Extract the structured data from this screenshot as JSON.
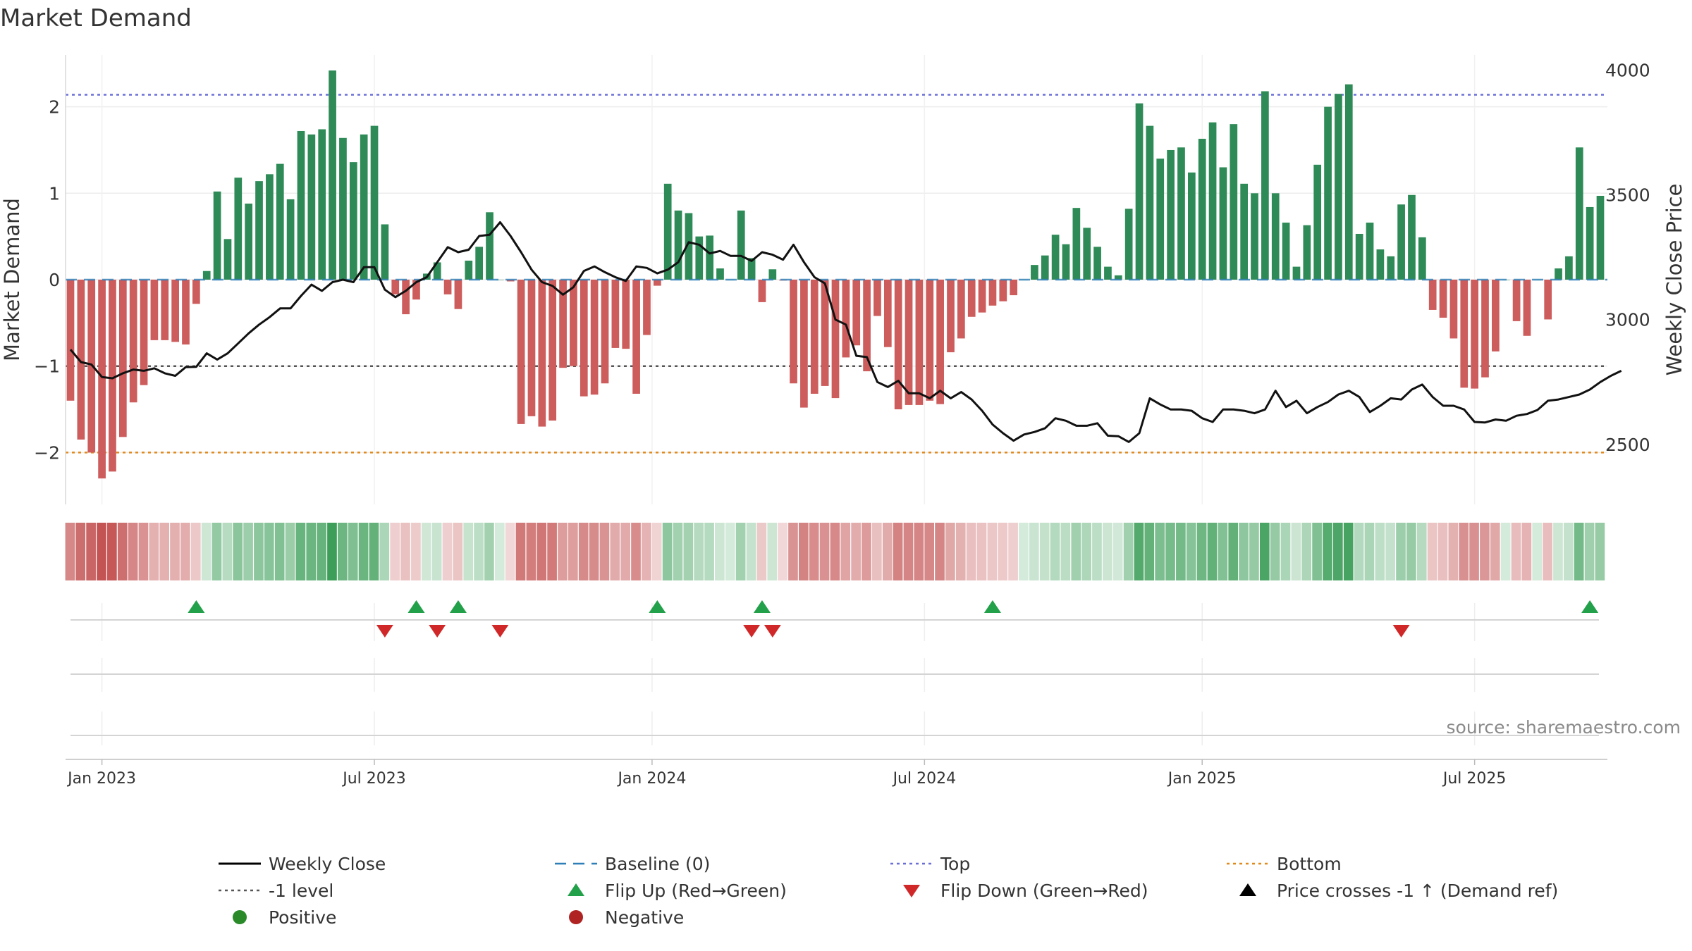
{
  "chart_data": {
    "type": "bar",
    "title": "Market Demand",
    "ylabel_left": "Market Demand",
    "ylabel_right": "Weekly Close Price",
    "source": "source: sharemaestro.com",
    "ylim_left": [
      -2.6,
      2.6
    ],
    "ylim_right": [
      2260,
      4060
    ],
    "yticks_left": [
      {
        "v": 2,
        "label": "2"
      },
      {
        "v": 1,
        "label": "1"
      },
      {
        "v": 0,
        "label": "0"
      },
      {
        "v": -1,
        "label": "−1"
      },
      {
        "v": -2,
        "label": "−2"
      }
    ],
    "yticks_right": [
      {
        "v": 4000,
        "label": "4000"
      },
      {
        "v": 3500,
        "label": "3500"
      },
      {
        "v": 3000,
        "label": "3000"
      },
      {
        "v": 2500,
        "label": "2500"
      }
    ],
    "x_ticks": [
      {
        "week": 3,
        "label": "Jan 2023"
      },
      {
        "week": 29,
        "label": "Jul 2023"
      },
      {
        "week": 55.5,
        "label": "Jan 2024"
      },
      {
        "week": 81.5,
        "label": "Jul 2024"
      },
      {
        "week": 108,
        "label": "Jan 2025"
      },
      {
        "week": 134,
        "label": "Jul 2025"
      }
    ],
    "reference_lines": {
      "top": 2.14,
      "minus_one": -1.0,
      "bottom": -2.0,
      "baseline": 0
    },
    "demand": [
      -1.4,
      -1.85,
      -2.0,
      -2.3,
      -2.22,
      -1.82,
      -1.42,
      -1.22,
      -0.7,
      -0.7,
      -0.72,
      -0.75,
      -0.28,
      0.1,
      1.02,
      0.47,
      1.18,
      0.88,
      1.14,
      1.22,
      1.34,
      0.93,
      1.72,
      1.68,
      1.74,
      2.42,
      1.64,
      1.36,
      1.68,
      1.78,
      0.64,
      -0.17,
      -0.4,
      -0.23,
      0.07,
      0.2,
      -0.17,
      -0.34,
      0.22,
      0.38,
      0.78,
      0.0,
      -0.02,
      -1.67,
      -1.58,
      -1.7,
      -1.63,
      -1.02,
      -1.0,
      -1.35,
      -1.33,
      -1.2,
      -0.79,
      -0.8,
      -1.32,
      -0.64,
      -0.07,
      1.11,
      0.8,
      0.77,
      0.5,
      0.51,
      0.13,
      0.0,
      0.8,
      0.25,
      -0.26,
      0.12,
      -0.01,
      -1.2,
      -1.48,
      -1.32,
      -1.23,
      -1.37,
      -0.9,
      -0.76,
      -1.06,
      -0.42,
      -0.78,
      -1.5,
      -1.45,
      -1.45,
      -1.4,
      -1.44,
      -0.84,
      -0.68,
      -0.43,
      -0.38,
      -0.3,
      -0.25,
      -0.18,
      0.0,
      0.17,
      0.28,
      0.52,
      0.41,
      0.83,
      0.6,
      0.38,
      0.15,
      0.05,
      0.82,
      2.04,
      1.78,
      1.4,
      1.5,
      1.53,
      1.24,
      1.63,
      1.82,
      1.3,
      1.8,
      1.11,
      1.0,
      2.18,
      1.0,
      0.66,
      0.15,
      0.63,
      1.33,
      2.0,
      2.15,
      2.26,
      0.53,
      0.66,
      0.35,
      0.27,
      0.87,
      0.98,
      0.49,
      -0.35,
      -0.44,
      -0.68,
      -1.25,
      -1.26,
      -1.13,
      -0.83,
      0.0,
      -0.48,
      -0.65,
      0.0,
      -0.46,
      0.13,
      0.27,
      1.53,
      0.84,
      0.97
    ],
    "price": [
      2880,
      2830,
      2820,
      2770,
      2765,
      2785,
      2800,
      2795,
      2805,
      2785,
      2775,
      2810,
      2811,
      2865,
      2840,
      2865,
      2905,
      2945,
      2980,
      3010,
      3045,
      3045,
      3095,
      3140,
      3115,
      3150,
      3160,
      3150,
      3210,
      3210,
      3120,
      3090,
      3115,
      3150,
      3170,
      3230,
      3290,
      3270,
      3280,
      3335,
      3340,
      3390,
      3335,
      3270,
      3200,
      3150,
      3135,
      3100,
      3130,
      3195,
      3213,
      3190,
      3170,
      3155,
      3213,
      3207,
      3185,
      3200,
      3230,
      3310,
      3300,
      3265,
      3275,
      3255,
      3255,
      3235,
      3270,
      3260,
      3240,
      3300,
      3230,
      3170,
      3145,
      3000,
      2980,
      2855,
      2850,
      2750,
      2730,
      2755,
      2705,
      2705,
      2685,
      2715,
      2685,
      2710,
      2680,
      2635,
      2580,
      2545,
      2515,
      2540,
      2550,
      2565,
      2605,
      2595,
      2575,
      2575,
      2585,
      2535,
      2533,
      2510,
      2545,
      2685,
      2660,
      2640,
      2640,
      2635,
      2605,
      2590,
      2640,
      2640,
      2635,
      2625,
      2640,
      2715,
      2650,
      2675,
      2625,
      2650,
      2670,
      2700,
      2715,
      2690,
      2630,
      2655,
      2685,
      2680,
      2720,
      2740,
      2690,
      2655,
      2655,
      2640,
      2590,
      2588,
      2600,
      2595,
      2615,
      2622,
      2638,
      2675,
      2680,
      2690,
      2700,
      2720,
      2750,
      2775,
      2795
    ],
    "flips_up": [
      12,
      33,
      37,
      56,
      66,
      88,
      145
    ],
    "flips_down": [
      30,
      35,
      41,
      65,
      67,
      127
    ],
    "legend": [
      {
        "label": "Weekly Close",
        "symbol": "solid-line",
        "color": "#000000"
      },
      {
        "label": "Baseline (0)",
        "symbol": "dash-line",
        "color": "#2e7fb8"
      },
      {
        "label": "Top",
        "symbol": "dot-line",
        "color": "#6a6fd8"
      },
      {
        "label": "Bottom",
        "symbol": "dot-line",
        "color": "#e08a1c"
      },
      {
        "label": "-1 level",
        "symbol": "dot-line",
        "color": "#555555"
      },
      {
        "label": "Flip Up (Red→Green)",
        "symbol": "triangle-up",
        "color": "#23a04a"
      },
      {
        "label": "Flip Down (Green→Red)",
        "symbol": "triangle-down",
        "color": "#d02828"
      },
      {
        "label": "Price crosses -1 ↑ (Demand ref)",
        "symbol": "triangle-up",
        "color": "#000000"
      },
      {
        "label": "Positive",
        "symbol": "circle",
        "color": "#2a8a2a"
      },
      {
        "label": "Negative",
        "symbol": "circle",
        "color": "#b02323"
      }
    ],
    "colors": {
      "positive": "#2e8b57",
      "negative": "#cd5c5c",
      "price": "#111111",
      "flip_up": "#23a04a",
      "flip_down": "#d02828"
    }
  }
}
